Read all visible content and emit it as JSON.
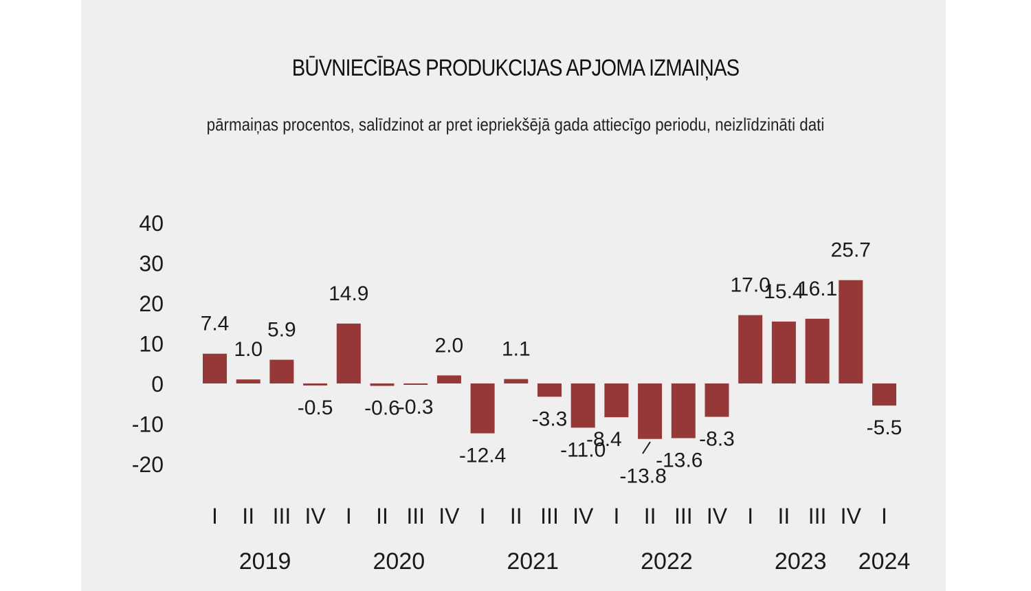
{
  "chart_data": {
    "type": "bar",
    "title": "BŪVNIECĪBAS PRODUKCIJAS APJOMA IZMAIŅAS",
    "subtitle": "pārmaiņas procentos, salīdzinot ar pret iepriekšējā gada attiecīgo periodu, neizlīdzināti dati",
    "ylim": [
      -20,
      40
    ],
    "yticks": [
      "40",
      "30",
      "20",
      "10",
      "0",
      "-10",
      "-20"
    ],
    "quarters": [
      "I",
      "II",
      "III",
      "IV",
      "I",
      "II",
      "III",
      "IV",
      "I",
      "II",
      "III",
      "IV",
      "I",
      "II",
      "III",
      "IV",
      "I",
      "II",
      "III",
      "IV",
      "I"
    ],
    "years": [
      {
        "label": "2019",
        "from": 0,
        "to": 3
      },
      {
        "label": "2020",
        "from": 4,
        "to": 7
      },
      {
        "label": "2021",
        "from": 8,
        "to": 11
      },
      {
        "label": "2022",
        "from": 12,
        "to": 15
      },
      {
        "label": "2023",
        "from": 16,
        "to": 19
      },
      {
        "label": "2024",
        "from": 20,
        "to": 20
      }
    ],
    "values": [
      7.4,
      1.0,
      5.9,
      -0.5,
      14.9,
      -0.6,
      -0.3,
      2.0,
      -12.4,
      1.1,
      -3.3,
      -11.0,
      -8.4,
      -13.8,
      -13.6,
      -8.3,
      17.0,
      15.4,
      16.1,
      25.7,
      -5.5
    ],
    "labels": [
      "7.4",
      "1.0",
      "5.9",
      "-0.5",
      "14.9",
      "-0.6",
      "-0.3",
      "2.0",
      "-12.4",
      "1.1",
      "-3.3",
      "-11.0",
      "-8.4",
      "-13.8",
      "-13.6",
      "-8.3",
      "17.0",
      "15.4",
      "16.1",
      "25.7",
      "-5.5"
    ],
    "bar_color": "#963838"
  }
}
